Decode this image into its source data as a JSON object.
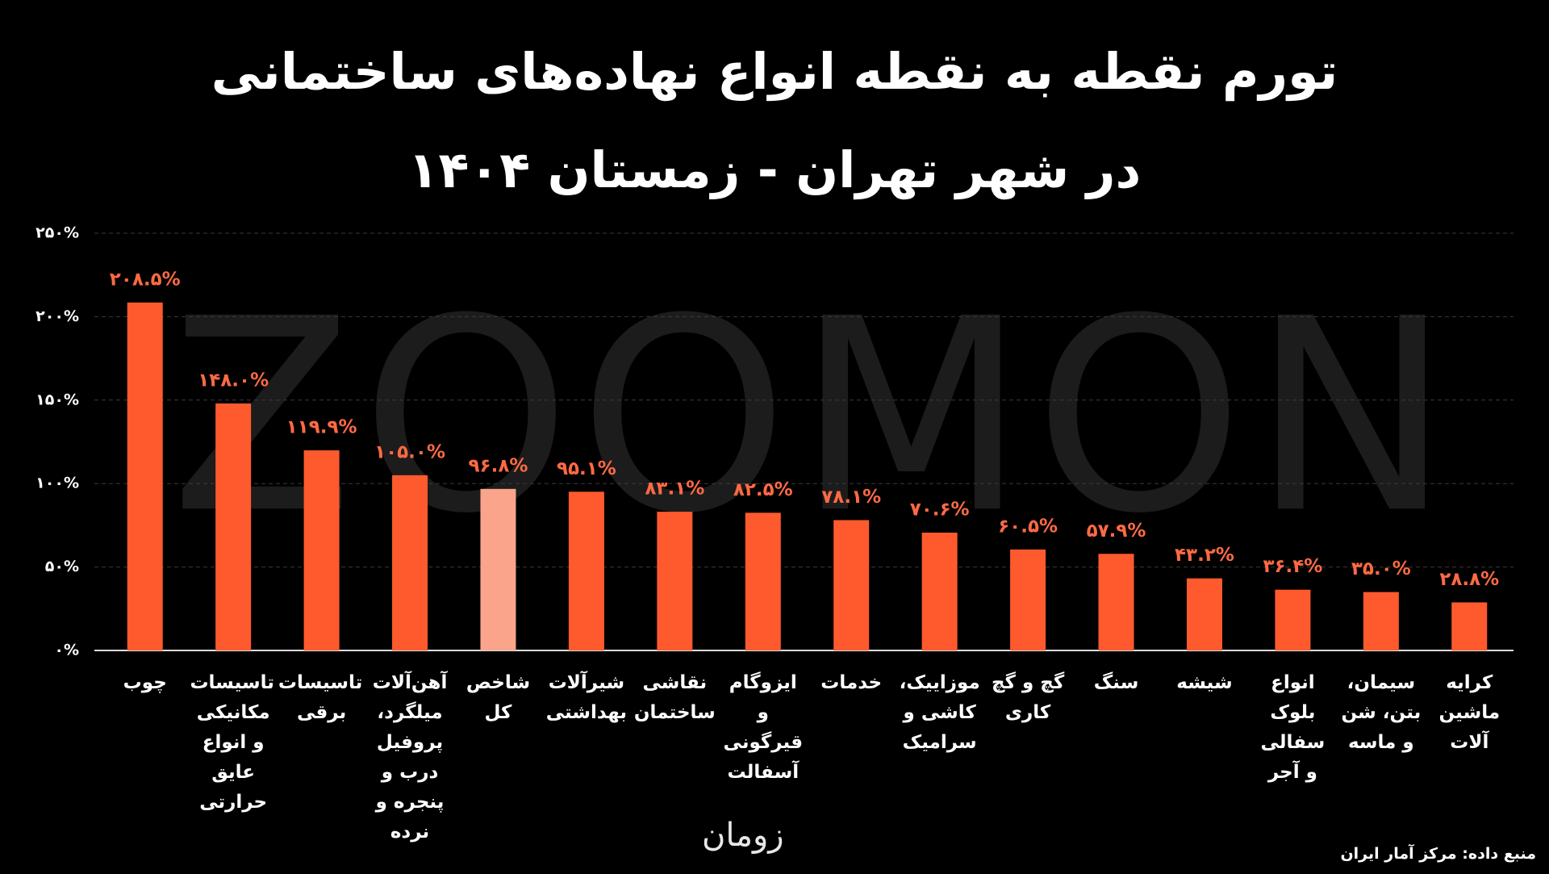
{
  "chart_data": {
    "type": "bar",
    "title": "تورم نقطه به نقطه انواع نهاده‌های ساختمانی\nدر شهر تهران - زمستان ۱۴۰۴",
    "watermark": "ZOOMON",
    "logo": "زومان",
    "source": "منبع داده: مرکز آمار ایران",
    "categories": [
      "چوب",
      "تاسیسات مکانیکی و انواع عایق حرارتی",
      "تاسیسات برقی",
      "آهن‌آلات میلگرد، پروفیل درب و پنجره و نرده",
      "شاخص کل",
      "شیرآلات بهداشتی",
      "نقاشی ساختمان",
      "ایزوگام و قیرگونی آسفالت",
      "خدمات",
      "موزاییک، کاشی و سرامیک",
      "گچ و گچ کاری",
      "سنگ",
      "شیشه",
      "انواع بلوک سفالی و آجر",
      "سیمان، بتن، شن و ماسه",
      "کرایه ماشین آلات"
    ],
    "values": [
      208.5,
      148.0,
      119.9,
      105.0,
      96.8,
      95.1,
      83.1,
      82.5,
      78.1,
      70.6,
      60.5,
      57.9,
      43.2,
      36.4,
      35.0,
      28.8
    ],
    "value_labels": [
      "۲۰۸.۵%",
      "۱۴۸.۰%",
      "۱۱۹.۹%",
      "۱۰۵.۰%",
      "۹۶.۸%",
      "۹۵.۱%",
      "۸۳.۱%",
      "۸۲.۵%",
      "۷۸.۱%",
      "۷۰.۶%",
      "۶۰.۵%",
      "۵۷.۹%",
      "۴۳.۲%",
      "۳۶.۴%",
      "۳۵.۰%",
      "۲۸.۸%"
    ],
    "colors": [
      "#ff5a2e",
      "#ff5a2e",
      "#ff5a2e",
      "#ff5a2e",
      "#f9a48b",
      "#ff5a2e",
      "#ff5a2e",
      "#ff5a2e",
      "#ff5a2e",
      "#ff5a2e",
      "#ff5a2e",
      "#ff5a2e",
      "#ff5a2e",
      "#ff5a2e",
      "#ff5a2e",
      "#ff5a2e"
    ],
    "label_color": "#ff6a44",
    "ylim": [
      0,
      250
    ],
    "yticks": [
      {
        "value": 0,
        "label": "۰%"
      },
      {
        "value": 50,
        "label": "۵۰%"
      },
      {
        "value": 100,
        "label": "۱۰۰%"
      },
      {
        "value": 150,
        "label": "۱۵۰%"
      },
      {
        "value": 200,
        "label": "۲۰۰%"
      },
      {
        "value": 250,
        "label": "۲۵۰%"
      }
    ],
    "grid": true
  }
}
